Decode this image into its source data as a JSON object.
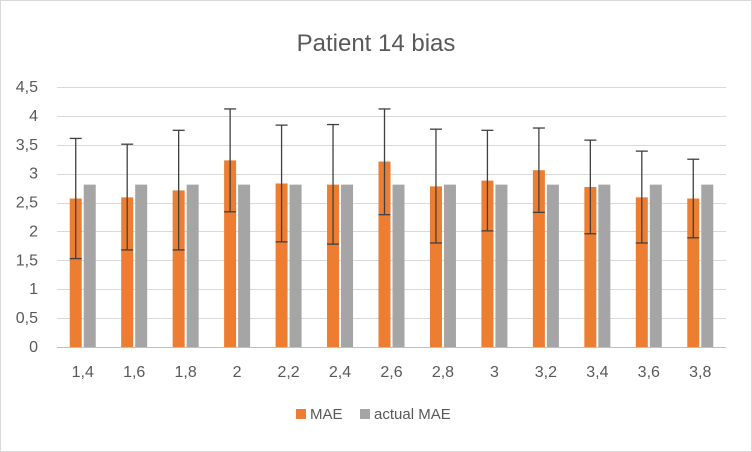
{
  "chart_data": {
    "type": "bar",
    "title": "Patient 14 bias",
    "xlabel": "",
    "ylabel": "",
    "ylim": [
      0,
      4.5
    ],
    "y_ticks": [
      "0",
      "0,5",
      "1",
      "1,5",
      "2",
      "2,5",
      "3",
      "3,5",
      "4",
      "4,5"
    ],
    "y_tick_values": [
      0,
      0.5,
      1,
      1.5,
      2,
      2.5,
      3,
      3.5,
      4,
      4.5
    ],
    "categories": [
      "1,4",
      "1,6",
      "1,8",
      "2",
      "2,2",
      "2,4",
      "2,6",
      "2,8",
      "3",
      "3,2",
      "3,4",
      "3,6",
      "3,8"
    ],
    "grid": true,
    "legend_position": "bottom",
    "series": [
      {
        "name": "MAE",
        "color": "#ed7d31",
        "values": [
          2.57,
          2.59,
          2.71,
          3.23,
          2.83,
          2.81,
          3.21,
          2.78,
          2.88,
          3.06,
          2.77,
          2.59,
          2.57
        ],
        "error_low": [
          1.53,
          1.68,
          1.68,
          2.34,
          1.82,
          1.78,
          2.29,
          1.8,
          2.01,
          2.33,
          1.96,
          1.8,
          1.89
        ],
        "error_high": [
          3.61,
          3.51,
          3.75,
          4.12,
          3.84,
          3.85,
          4.12,
          3.77,
          3.75,
          3.79,
          3.58,
          3.39,
          3.25
        ]
      },
      {
        "name": "actual MAE",
        "color": "#a5a5a5",
        "values": [
          2.81,
          2.81,
          2.81,
          2.81,
          2.81,
          2.81,
          2.81,
          2.81,
          2.81,
          2.81,
          2.81,
          2.81,
          2.81
        ]
      }
    ]
  }
}
